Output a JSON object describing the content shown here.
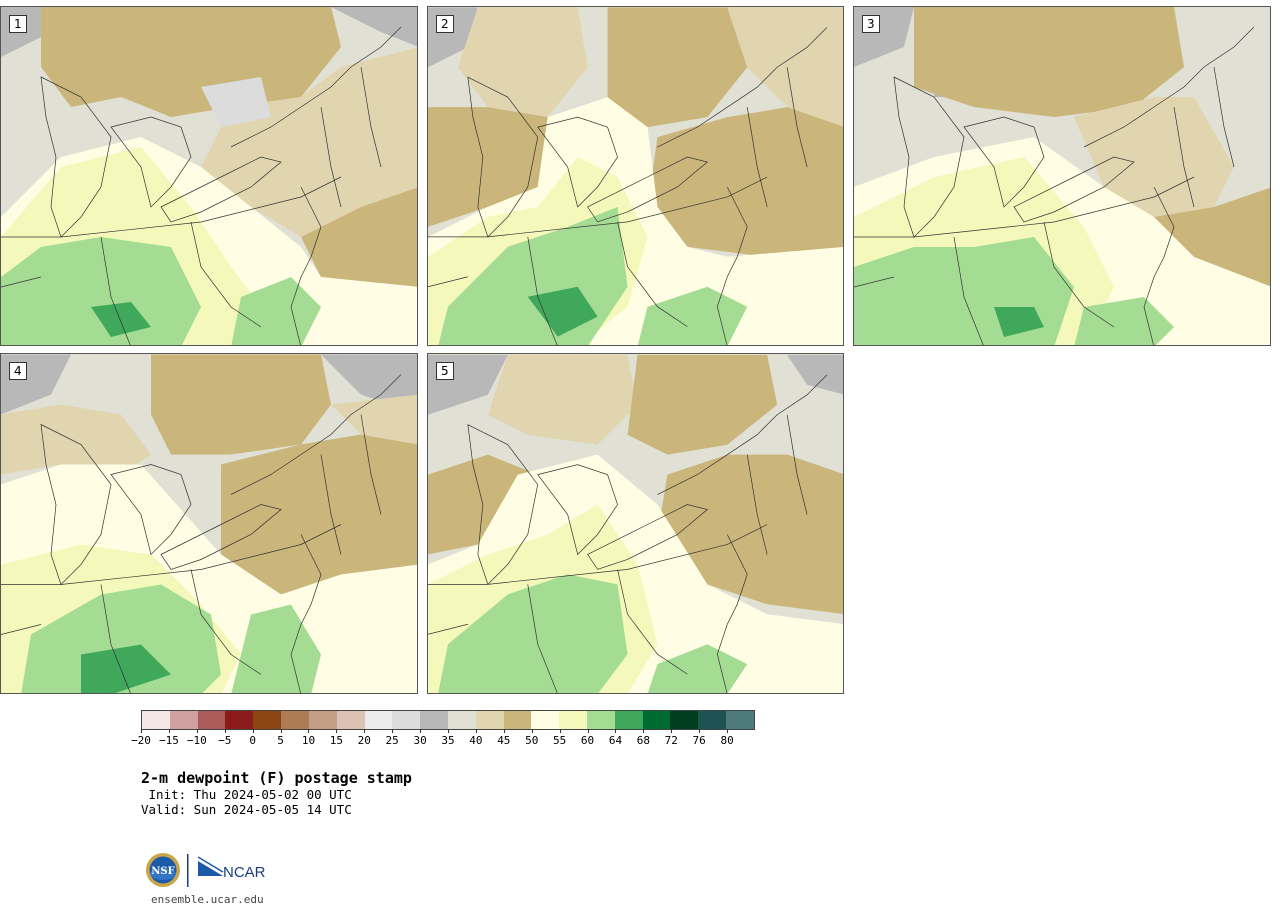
{
  "panels": [
    {
      "label": "1",
      "variant": 0
    },
    {
      "label": "2",
      "variant": 1
    },
    {
      "label": "3",
      "variant": 2
    },
    {
      "label": "4",
      "variant": 3
    },
    {
      "label": "5",
      "variant": 4
    }
  ],
  "colorbar": {
    "colors": [
      "#f2e6e6",
      "#d1a0a0",
      "#ad5b5b",
      "#8b1a1a",
      "#8b4513",
      "#ad7b55",
      "#c59e86",
      "#dcc1b4",
      "#ececec",
      "#dcdcdc",
      "#b8b8b8",
      "#e0e0d5",
      "#e1d5b0",
      "#cab57a",
      "#fffee4",
      "#f5f8bb",
      "#a5dc94",
      "#3fa85a",
      "#006b30",
      "#003d1f",
      "#1f5353",
      "#4f7a7b"
    ],
    "tick_labels": [
      "−20",
      "−15",
      "−10",
      "−5",
      "0",
      "5",
      "10",
      "15",
      "20",
      "25",
      "30",
      "35",
      "40",
      "45",
      "50",
      "55",
      "60",
      "64",
      "68",
      "72",
      "76",
      "80"
    ]
  },
  "title": "2-m dewpoint (F) postage stamp",
  "init": " Init: Thu 2024-05-02 00 UTC",
  "valid": "Valid: Sun 2024-05-05 14 UTC",
  "logo": {
    "nsf_text": "NSF",
    "ncar_text": "NCAR"
  },
  "site": "ensemble.ucar.edu"
}
